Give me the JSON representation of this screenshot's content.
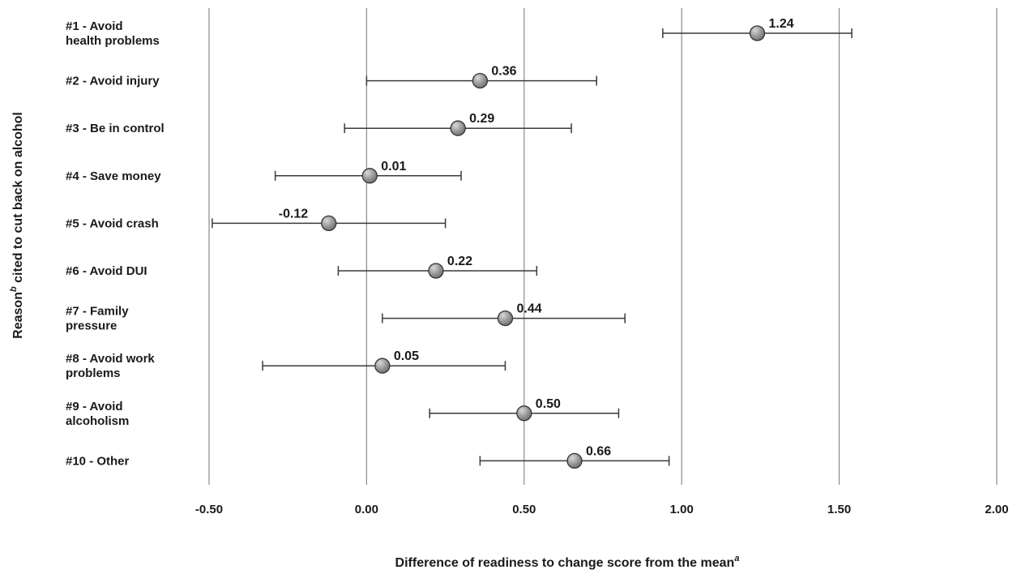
{
  "chart_data": {
    "type": "scatter",
    "subtype": "forest-plot-with-error-bars",
    "title": "",
    "xlabel": "Difference of readiness to change score from the mean",
    "xlabel_superscript": "a",
    "ylabel": "Reason",
    "ylabel_superscript": "b",
    "ylabel_rest": " cited to cut back on alcohol",
    "xlim": [
      -0.5,
      2.0
    ],
    "xticks": [
      "-0.50",
      "0.00",
      "0.50",
      "1.00",
      "1.50",
      "2.00"
    ],
    "xtick_values": [
      -0.5,
      0.0,
      0.5,
      1.0,
      1.5,
      2.0
    ],
    "grid": "vertical",
    "marker_color": "#8c8c8c",
    "points": [
      {
        "label": [
          "#1 - Avoid",
          "health problems"
        ],
        "value": 1.24,
        "value_label": "1.24",
        "ci": [
          0.94,
          1.54
        ]
      },
      {
        "label": [
          "#2 - Avoid injury"
        ],
        "value": 0.36,
        "value_label": "0.36",
        "ci": [
          0.0,
          0.73
        ]
      },
      {
        "label": [
          "#3 - Be in control"
        ],
        "value": 0.29,
        "value_label": "0.29",
        "ci": [
          -0.07,
          0.65
        ]
      },
      {
        "label": [
          "#4 - Save money"
        ],
        "value": 0.01,
        "value_label": "0.01",
        "ci": [
          -0.29,
          0.3
        ]
      },
      {
        "label": [
          "#5 - Avoid crash"
        ],
        "value": -0.12,
        "value_label": "-0.12",
        "ci": [
          -0.49,
          0.25
        ]
      },
      {
        "label": [
          "#6 - Avoid DUI"
        ],
        "value": 0.22,
        "value_label": "0.22",
        "ci": [
          -0.09,
          0.54
        ]
      },
      {
        "label": [
          "#7 - Family",
          "pressure"
        ],
        "value": 0.44,
        "value_label": "0.44",
        "ci": [
          0.05,
          0.82
        ]
      },
      {
        "label": [
          "#8 - Avoid work",
          "problems"
        ],
        "value": 0.05,
        "value_label": "0.05",
        "ci": [
          -0.33,
          0.44
        ]
      },
      {
        "label": [
          "#9 - Avoid",
          "alcoholism"
        ],
        "value": 0.5,
        "value_label": "0.50",
        "ci": [
          0.2,
          0.8
        ]
      },
      {
        "label": [
          "#10 - Other"
        ],
        "value": 0.66,
        "value_label": "0.66",
        "ci": [
          0.36,
          0.96
        ]
      }
    ]
  }
}
